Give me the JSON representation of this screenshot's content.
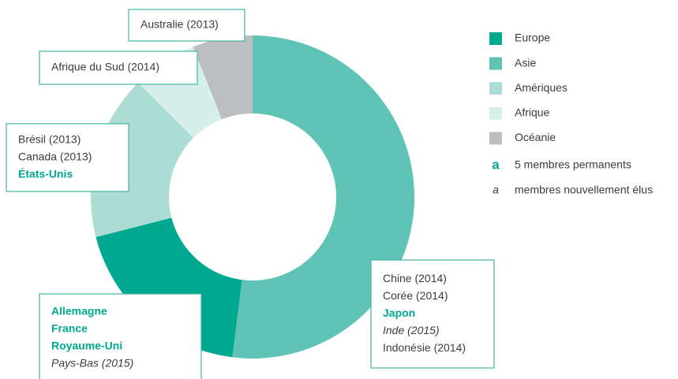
{
  "chart_data": {
    "type": "donut",
    "categories": [
      "Europe",
      "Asie",
      "Amériques",
      "Afrique",
      "Océanie"
    ],
    "values": [
      19,
      52,
      16.5,
      6.5,
      6
    ],
    "colors": [
      "#00a88f",
      "#5fc4b5",
      "#abddd5",
      "#d7efeb",
      "#bcbec0"
    ],
    "legend_position": "right",
    "legend_notes": [
      {
        "symbol": "a",
        "label": "5 membres permanents",
        "style": "permanent"
      },
      {
        "symbol": "a",
        "label": "membres nouvellement élus",
        "style": "new"
      }
    ],
    "annotations": [
      {
        "lines": [
          {
            "text": "Allemagne",
            "style": "permanent"
          },
          {
            "text": "France",
            "style": "permanent"
          },
          {
            "text": "Royaume-Uni",
            "style": "permanent"
          },
          {
            "text": "Pays-Bas (2015)",
            "style": "new"
          }
        ]
      },
      {
        "lines": [
          {
            "text": "Chine (2014)",
            "style": "regular"
          },
          {
            "text": "Corée (2014)",
            "style": "regular"
          },
          {
            "text": "Japon",
            "style": "permanent"
          },
          {
            "text": "Inde (2015)",
            "style": "new"
          },
          {
            "text": "Indonésie (2014)",
            "style": "regular"
          }
        ]
      },
      {
        "lines": [
          {
            "text": "Brésil (2013)",
            "style": "regular"
          },
          {
            "text": "Canada (2013)",
            "style": "regular"
          },
          {
            "text": "États-Unis",
            "style": "permanent"
          }
        ]
      },
      {
        "lines": [
          {
            "text": "Afrique du Sud (2014)",
            "style": "regular"
          }
        ]
      },
      {
        "lines": [
          {
            "text": "Australie (2013)",
            "style": "regular"
          }
        ]
      }
    ]
  }
}
